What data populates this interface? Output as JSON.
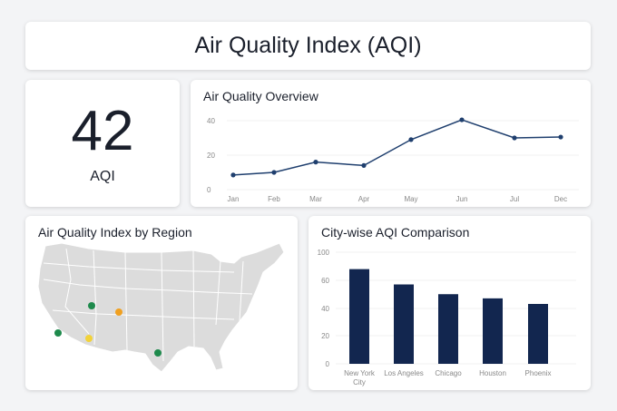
{
  "header": {
    "title": "Air Quality Index (AQI)"
  },
  "kpi": {
    "value": "42",
    "label": "AQI"
  },
  "map": {
    "title": "Air Quality Index by Region",
    "markers": [
      {
        "color": "#1e8a4c"
      },
      {
        "color": "#f0a020"
      },
      {
        "color": "#1e8a4c"
      },
      {
        "color": "#f2d23a"
      },
      {
        "color": "#1e8a4c"
      }
    ]
  },
  "chart_data": [
    {
      "type": "line",
      "title": "Air Quality Overview",
      "categories": [
        "Jan",
        "Feb",
        "Mar",
        "Apr",
        "May",
        "Jun",
        "Jul",
        "Dec"
      ],
      "values": [
        8.5,
        10,
        16,
        14,
        29,
        40.5,
        30,
        30.5
      ],
      "ylim": [
        0,
        40
      ],
      "yticks": [
        0,
        20,
        40
      ],
      "grid": true,
      "color": "#1f3f6e"
    },
    {
      "type": "bar",
      "title": "City-wise AQI Comparison",
      "categories": [
        "New York City",
        "Los Angeles",
        "Chicago",
        "Houston",
        "Phoenix"
      ],
      "values": [
        68,
        57,
        50,
        47,
        43
      ],
      "yticks": [
        0,
        20,
        40,
        60,
        100
      ],
      "grid": true,
      "color": "#12264f"
    }
  ]
}
